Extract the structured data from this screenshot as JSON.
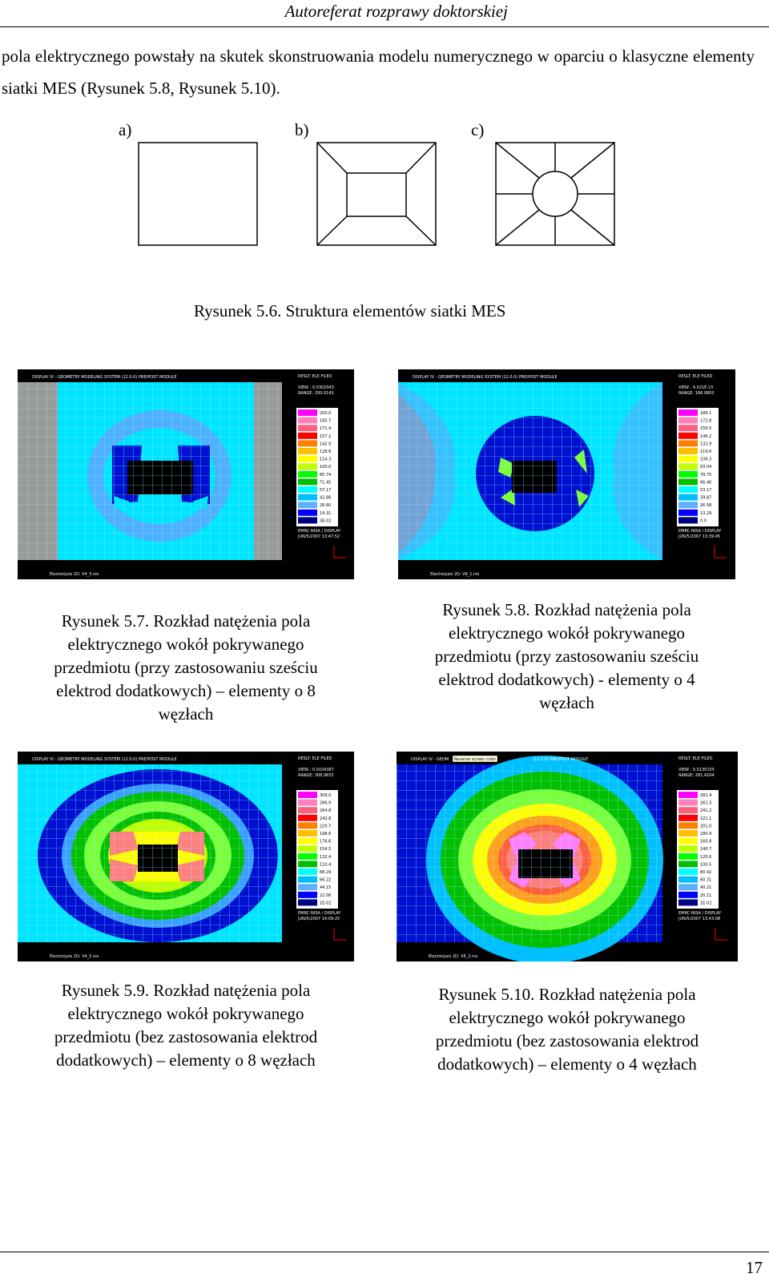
{
  "header": {
    "title": "Autoreferat rozprawy doktorskiej"
  },
  "intro_text": "pola elektrycznego powstały na skutek skonstruowania modelu numerycznego w oparciu o klasyczne elementy siatki MES (Rysunek 5.8, Rysunek 5.10).",
  "figure_5_6": {
    "labels": [
      "a)",
      "b)",
      "c)"
    ],
    "caption": "Rysunek 5.6. Struktura elementów siatki MES"
  },
  "screens": [
    {
      "title": "DISPLAY IV - GEOMETRY MODELING SYSTEM (12.0.0) PRE/POST MODULE",
      "result": "RESLT: ELE FILED",
      "view": "VIEW : 0.0302043",
      "range": "RANGE: 200.0143",
      "scale": [
        "200.0",
        "185.7",
        "171.4",
        "157.2",
        "142.9",
        "128.6",
        "114.3",
        "100.0",
        "85.74",
        "71.45",
        "57.17",
        "42.88",
        "28.60",
        "14.31",
        "3E-02"
      ],
      "footer1": "EMRC-NISA / DISPLAY",
      "footer2": "JUN/5/2007   13:47:52",
      "file": "Electrolysis 2D: V4_5.nis"
    },
    {
      "title": "DISPLAY IV - GEOMETRY MODELING SYSTEM (12.0.0) PRE/POST MODULE",
      "result": "RESLT: ELE FILED",
      "view": "VIEW : 4.021E-15",
      "range": "RANGE: 186.0803",
      "scale": [
        "186.1",
        "172.8",
        "159.5",
        "146.2",
        "132.9",
        "119.6",
        "106.3",
        "93.04",
        "79.75",
        "66.46",
        "53.17",
        "39.87",
        "26.58",
        "13.29",
        "0.0"
      ],
      "footer1": "EMRC-NISA / DISPLAY",
      "footer2": "JUN/5/2007   13:39:45",
      "file": "Electrolysis 2D: V6_1.nis"
    },
    {
      "title": "DISPLAY IV - GEOMETRY MODELING SYSTEM (12.0.0) PRE/POST MODULE",
      "result": "RESLT: ELE FILED",
      "view": "VIEW : 0.0104387",
      "range": "RANGE: 308.9833",
      "scale": [
        "309.0",
        "286.9",
        "264.8",
        "242.8",
        "220.7",
        "198.6",
        "176.6",
        "154.5",
        "132.4",
        "110.4",
        "88.29",
        "66.22",
        "44.15",
        "22.08",
        "1E-02"
      ],
      "footer1": "EMRC-NISA / DISPLAY",
      "footer2": "JUN/5/2007   14:09:25",
      "file": "Electrolysis 2D: V4_5.nis"
    },
    {
      "title": "DISPLAY IV - GEOM",
      "tooltip": "Reverse screen color",
      "title_rest": "(12.0.0) PRE/POST MODULE",
      "result": "RESLT: ELE FILED",
      "view": "VIEW : 0.0130155",
      "range": "RANGE: 281.4204",
      "scale": [
        "281.4",
        "261.3",
        "241.2",
        "221.1",
        "201.0",
        "180.9",
        "160.8",
        "140.7",
        "120.6",
        "100.5",
        "80.42",
        "60.31",
        "40.21",
        "20.11",
        "1E-02"
      ],
      "footer1": "EMRC-NISA / DISPLAY",
      "footer2": "JUN/5/2007   13:43:08",
      "file": "Electrolysis 2D: V6_2.nis"
    }
  ],
  "scale_colors": [
    "#ff00ff",
    "#ff7fbf",
    "#ff5f7f",
    "#ff0000",
    "#ff7f00",
    "#ffbf00",
    "#ffff00",
    "#bfff00",
    "#00ff00",
    "#00bf00",
    "#00ffff",
    "#00bfff",
    "#5fafff",
    "#0000ff",
    "#000080"
  ],
  "captions": {
    "fig_5_7": [
      "Rysunek 5.7. Rozkład natężenia pola",
      "elektrycznego wokół pokrywanego",
      "przedmiotu (przy zastosowaniu sześciu",
      "elektrod dodatkowych) – elementy o 8",
      "węzłach"
    ],
    "fig_5_8": [
      "Rysunek 5.8. Rozkład natężenia pola",
      "elektrycznego wokół pokrywanego",
      "przedmiotu (przy zastosowaniu sześciu",
      "elektrod dodatkowych) - elementy o 4",
      "węzłach"
    ],
    "fig_5_9": [
      "Rysunek 5.9. Rozkład natężenia pola",
      "elektrycznego wokół pokrywanego",
      "przedmiotu (bez zastosowania elektrod",
      "dodatkowych) – elementy o 8 węzłach"
    ],
    "fig_5_10": [
      "Rysunek 5.10. Rozkład natężenia pola",
      "elektrycznego wokół pokrywanego",
      "przedmiotu (bez zastosowania elektrod",
      "dodatkowych) – elementy o 4 węzłach"
    ]
  },
  "page_number": "17"
}
